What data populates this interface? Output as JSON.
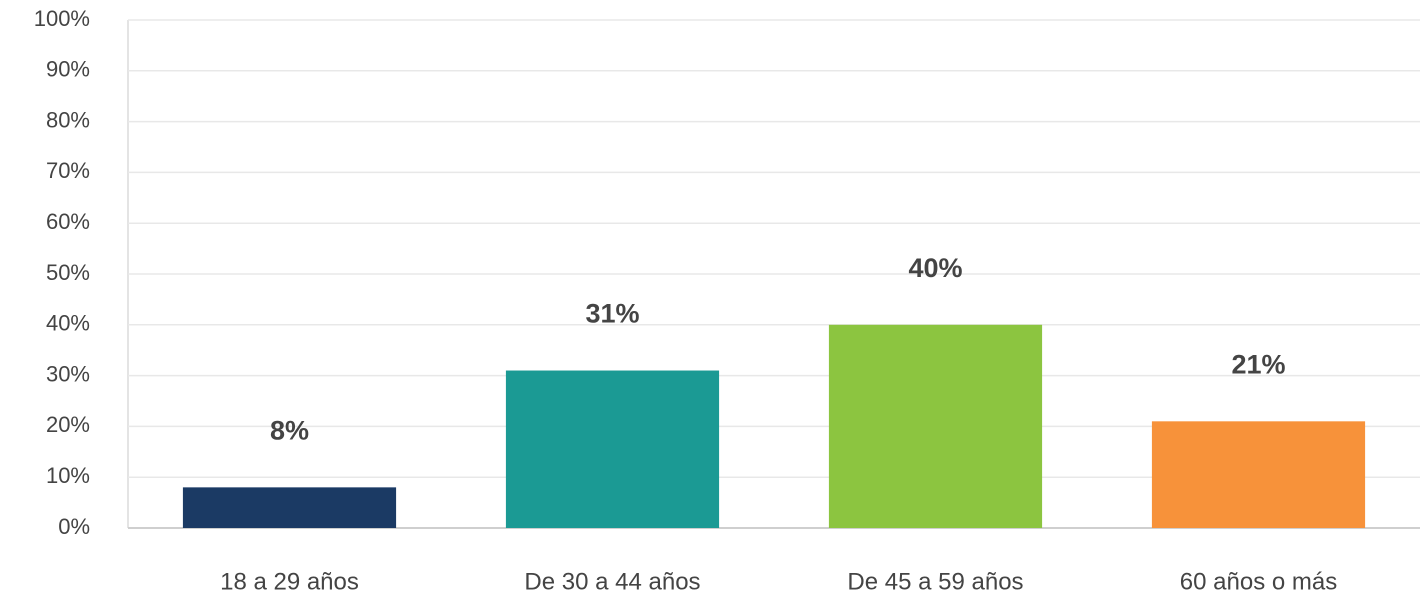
{
  "chart_data": {
    "type": "bar",
    "categories": [
      "18 a 29 años",
      "De 30 a 44 años",
      "De 45 a 59 años",
      "60 años o más"
    ],
    "values": [
      8,
      31,
      40,
      21
    ],
    "value_labels": [
      "8%",
      "31%",
      "40%",
      "21%"
    ],
    "colors": [
      "#1b3a64",
      "#1b9a94",
      "#8cc540",
      "#f7923a"
    ],
    "ylim": [
      0,
      100
    ],
    "yticks": [
      {
        "value": 0,
        "label": "0%"
      },
      {
        "value": 10,
        "label": "10%"
      },
      {
        "value": 20,
        "label": "20%"
      },
      {
        "value": 30,
        "label": "30%"
      },
      {
        "value": 40,
        "label": "40%"
      },
      {
        "value": 50,
        "label": "50%"
      },
      {
        "value": 60,
        "label": "60%"
      },
      {
        "value": 70,
        "label": "70%"
      },
      {
        "value": 80,
        "label": "80%"
      },
      {
        "value": 90,
        "label": "90%"
      },
      {
        "value": 100,
        "label": "100%"
      }
    ],
    "grid": true
  }
}
